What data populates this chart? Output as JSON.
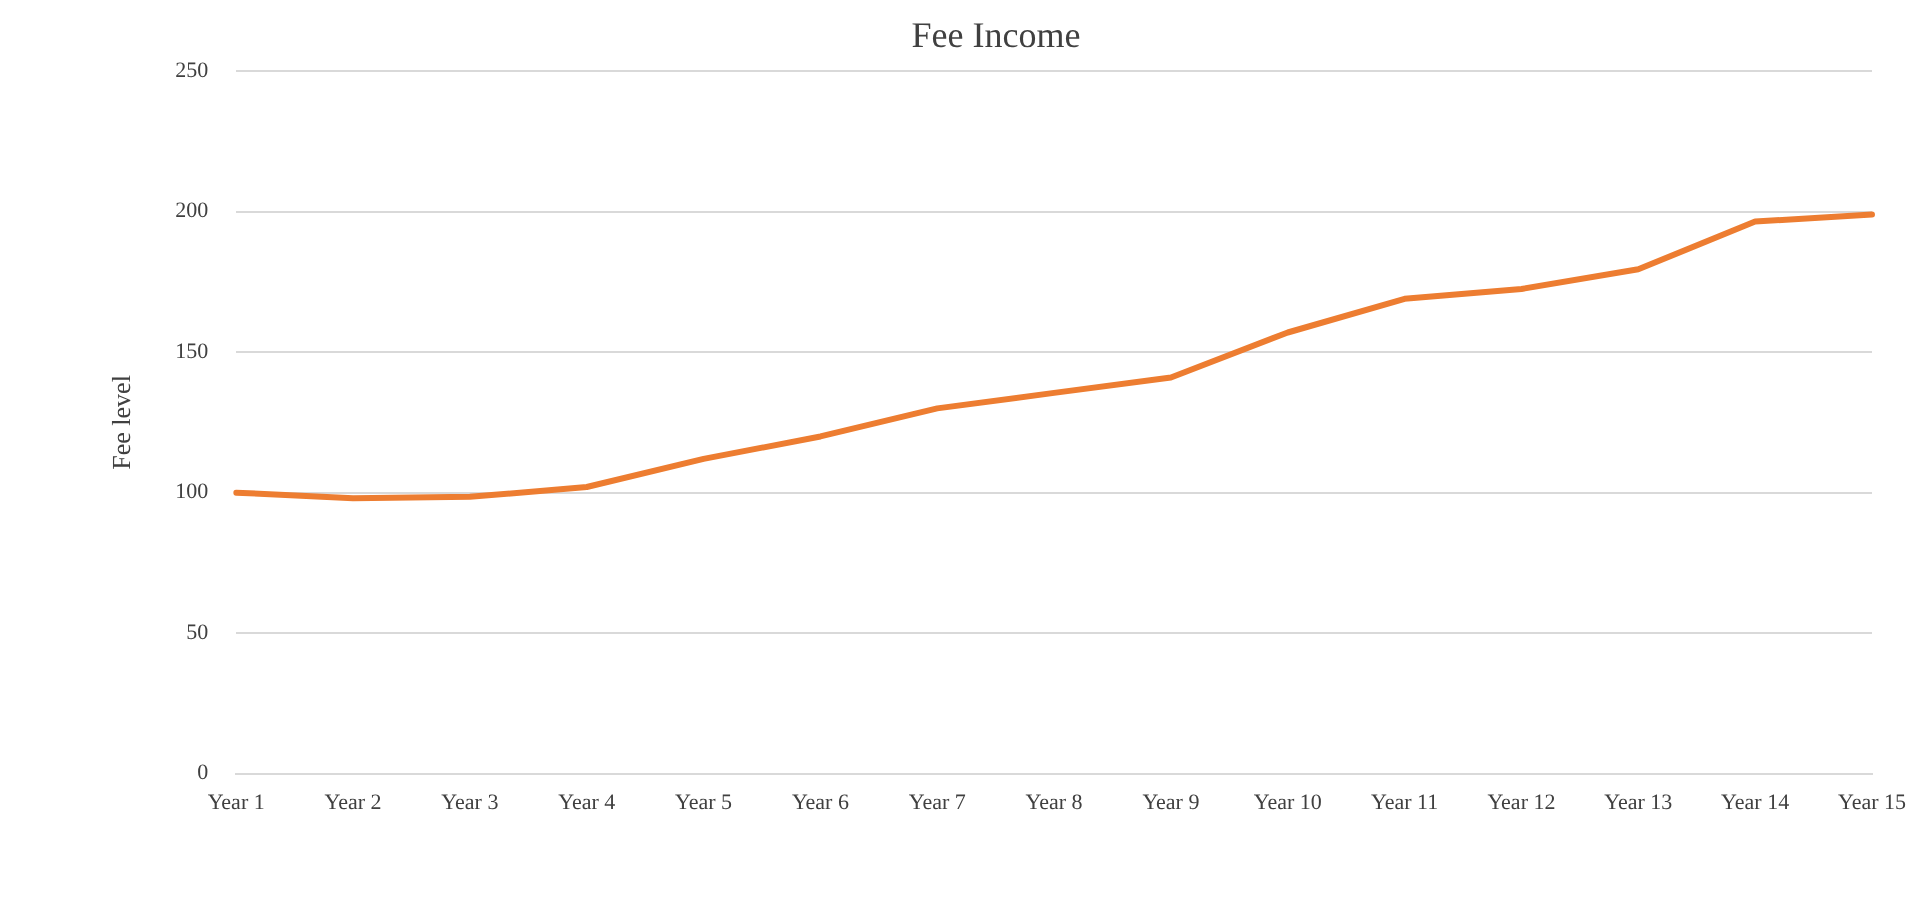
{
  "chart_data": {
    "type": "line",
    "title": "Fee Income",
    "ylabel": "Fee level",
    "categories": [
      "Year 1",
      "Year 2",
      "Year 3",
      "Year 4",
      "Year 5",
      "Year 6",
      "Year 7",
      "Year 8",
      "Year 9",
      "Year 10",
      "Year 11",
      "Year 12",
      "Year 13",
      "Year 14",
      "Year 15"
    ],
    "series": [
      {
        "color": "#ed7d31",
        "values": [
          100,
          98,
          98.5,
          102,
          112,
          120,
          130,
          135.5,
          141,
          157,
          169,
          172.5,
          179.5,
          196.5,
          199
        ]
      }
    ],
    "ylim": [
      0,
      250
    ],
    "yticks": [
      0,
      50,
      100,
      150,
      200,
      250
    ],
    "grid": "y",
    "legend": false,
    "marker": "none",
    "line_style": "solid"
  }
}
